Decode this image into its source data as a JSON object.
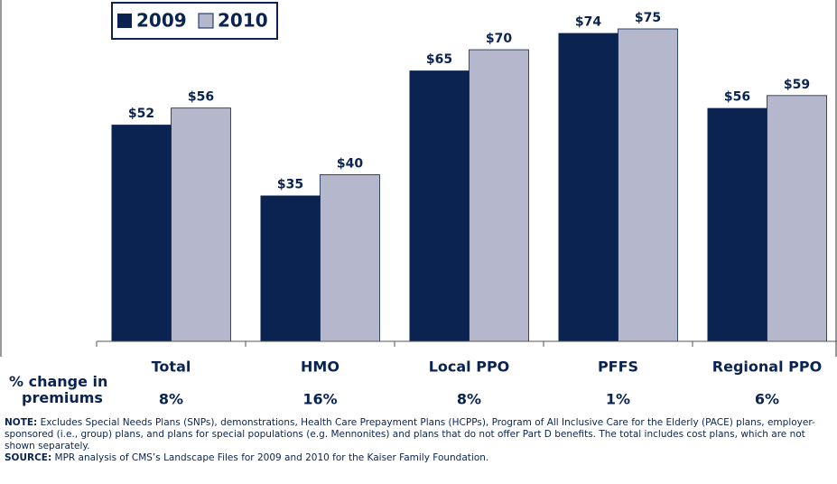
{
  "chart_data": {
    "type": "bar",
    "categories": [
      "Total",
      "HMO",
      "Local PPO",
      "PFFS",
      "Regional PPO"
    ],
    "series": [
      {
        "name": "2009",
        "color": "#0b2350",
        "values": [
          52,
          35,
          65,
          74,
          56
        ],
        "value_labels": [
          "$52",
          "$35",
          "$65",
          "$74",
          "$56"
        ]
      },
      {
        "name": "2010",
        "color": "#b5b7cc",
        "values": [
          56,
          40,
          70,
          75,
          59
        ],
        "value_labels": [
          "$56",
          "$40",
          "$70",
          "$75",
          "$59"
        ]
      }
    ],
    "ylim": [
      0,
      75
    ],
    "legend": "top-left",
    "change_label": "% change in premiums",
    "changes": [
      "8%",
      "16%",
      "8%",
      "1%",
      "6%"
    ],
    "note_label": "NOTE:",
    "note": "Excludes Special Needs Plans (SNPs), demonstrations, Health Care Prepayment Plans (HCPPs), Program of All Inclusive Care for the Elderly (PACE) plans, employer-sponsored (i.e., group) plans, and plans for special populations (e.g. Mennonites) and plans that do not offer Part D benefits. The total includes cost plans, which are not shown separately.",
    "source_label": "SOURCE:",
    "source": "MPR analysis of CMS’s Landscape Files for 2009 and 2010 for the Kaiser Family Foundation."
  }
}
